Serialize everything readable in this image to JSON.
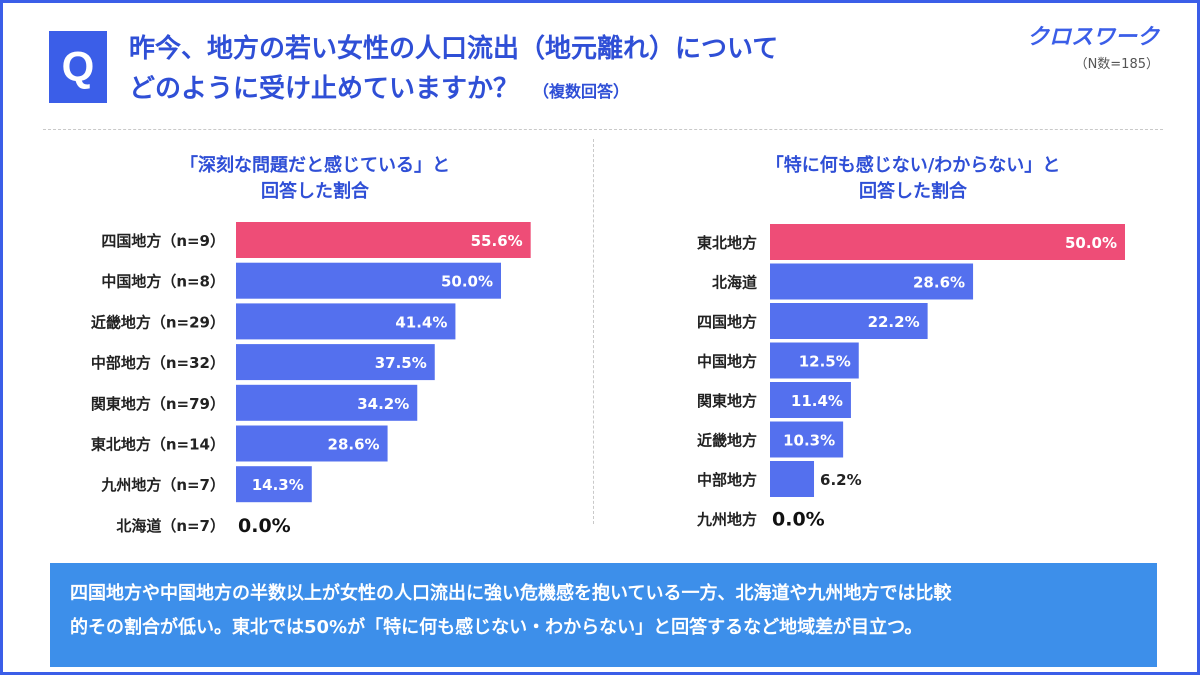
{
  "question": {
    "badge": "Q",
    "line1": "昨今、地方の若い女性の人口流出（地元離れ）について",
    "line2": "どのように受け止めていますか？",
    "note": "（複数回答）"
  },
  "brand": {
    "logo": "クロスワーク",
    "n": "（N数=185）"
  },
  "left": {
    "title1": "「深刻な問題だと感じている」と",
    "title2": "回答した割合"
  },
  "right": {
    "title1": "「特に何も感じない/わからない」と",
    "title2": "回答した割合"
  },
  "summary": {
    "line1": "四国地方や中国地方の半数以上が女性の人口流出に強い危機感を抱いている一方、北海道や九州地方では比較",
    "line2": "的その割合が低い。東北では50%が「特に何も感じない・わからない」と回答するなど地域差が目立つ。"
  },
  "colors": {
    "highlight": "#ee4d77",
    "bar": "#5470ee",
    "title": "#2f4fd6",
    "label": "#222222"
  },
  "chart_data": [
    {
      "type": "bar",
      "orientation": "horizontal",
      "title": "「深刻な問題だと感じている」と回答した割合",
      "categories": [
        "四国地方（n=9）",
        "中国地方（n=8）",
        "近畿地方（n=29）",
        "中部地方（n=32）",
        "関東地方（n=79）",
        "東北地方（n=14）",
        "九州地方（n=7）",
        "北海道（n=7）"
      ],
      "values": [
        55.6,
        50.0,
        41.4,
        37.5,
        34.2,
        28.6,
        14.3,
        0.0
      ],
      "labels": [
        "55.6%",
        "50.0%",
        "41.4%",
        "37.5%",
        "34.2%",
        "28.6%",
        "14.3%",
        "0.0%"
      ],
      "highlight_index": 0,
      "xlim": [
        0,
        100
      ]
    },
    {
      "type": "bar",
      "orientation": "horizontal",
      "title": "「特に何も感じない/わからない」と回答した割合",
      "categories": [
        "東北地方",
        "北海道",
        "四国地方",
        "中国地方",
        "関東地方",
        "近畿地方",
        "中部地方",
        "九州地方"
      ],
      "values": [
        50.0,
        28.6,
        22.2,
        12.5,
        11.4,
        10.3,
        6.2,
        0.0
      ],
      "labels": [
        "50.0%",
        "28.6%",
        "22.2%",
        "12.5%",
        "11.4%",
        "10.3%",
        "6.2%",
        "0.0%"
      ],
      "highlight_index": 0,
      "xlim": [
        0,
        100
      ]
    }
  ]
}
